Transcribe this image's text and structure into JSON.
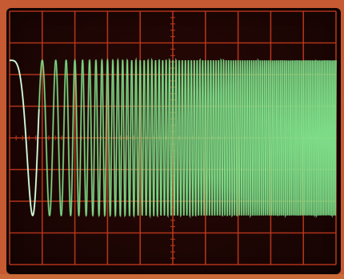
{
  "colors": {
    "background": "#1e0604",
    "grid": "#c0391d",
    "trace": "#7fe08a",
    "trace_glow": "#e8fff0",
    "bezel": "#c65a32"
  },
  "chart_data": {
    "type": "line",
    "title": "",
    "xlabel": "",
    "ylabel": "",
    "grid": true,
    "grid_divisions": {
      "x": 10,
      "y": 8
    },
    "minor_ticks_per_division": 5,
    "signal": "linear chirp",
    "xlim": [
      0,
      10
    ],
    "ylim": [
      -4,
      4
    ],
    "series": [
      {
        "function": "cosine",
        "amplitude": 2.45,
        "offset": 0.0,
        "phase_turns_at_x0": 0.0,
        "cycles_per_division_start": 0.0,
        "cycles_per_division_end": 20.0,
        "approx_total_cycles": 100
      }
    ]
  }
}
